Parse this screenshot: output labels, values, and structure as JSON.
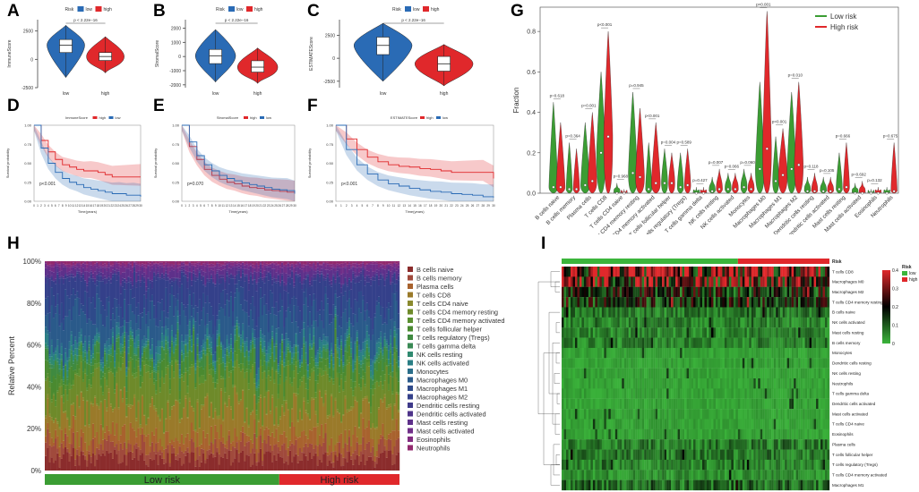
{
  "panel_labels": {
    "A": "A",
    "B": "B",
    "C": "C",
    "D": "D",
    "E": "E",
    "F": "F",
    "G": "G",
    "H": "H",
    "I": "I"
  },
  "colors": {
    "low": "#2a6bb5",
    "high": "#e0282b",
    "green": "#3b9d33",
    "hm_high": "#e0282b",
    "hm_mid": "#000000",
    "hm_low": "#3bb53b"
  },
  "chart_data": [
    {
      "id": "A",
      "type": "violin",
      "legend_title": "Risk",
      "legend_entries": [
        "low",
        "high"
      ],
      "ylabel": "ImmuneScore",
      "yticks": [
        -2500,
        0,
        2500
      ],
      "ylim": [
        -2500,
        3500
      ],
      "categories": [
        "low",
        "high"
      ],
      "medians": [
        1250,
        250
      ],
      "q1": [
        600,
        -100
      ],
      "q3": [
        1750,
        600
      ],
      "whisk": [
        [
          -1600,
          3000
        ],
        [
          -1200,
          2000
        ]
      ],
      "pvalue": "p < 2.22e−16"
    },
    {
      "id": "B",
      "type": "violin",
      "legend_title": "Risk",
      "legend_entries": [
        "low",
        "high"
      ],
      "ylabel": "StromalScore",
      "yticks": [
        -2000,
        -1000,
        0,
        1000,
        2000
      ],
      "ylim": [
        -2200,
        2600
      ],
      "categories": [
        "low",
        "high"
      ],
      "medians": [
        50,
        -750
      ],
      "q1": [
        -500,
        -1100
      ],
      "q3": [
        500,
        -300
      ],
      "whisk": [
        [
          -1800,
          1900
        ],
        [
          -1900,
          600
        ]
      ],
      "pvalue": "p < 2.22e−16"
    },
    {
      "id": "C",
      "type": "violin",
      "legend_title": "Risk",
      "legend_entries": [
        "low",
        "high"
      ],
      "ylabel": "ESTIMATEScore",
      "yticks": [
        -2500,
        0,
        2500
      ],
      "ylim": [
        -3200,
        4200
      ],
      "categories": [
        "low",
        "high"
      ],
      "medians": [
        1400,
        -600
      ],
      "q1": [
        400,
        -1400
      ],
      "q3": [
        2300,
        200
      ],
      "whisk": [
        [
          -2500,
          3800
        ],
        [
          -3000,
          1500
        ]
      ],
      "pvalue": "p < 2.22e−16"
    },
    {
      "id": "D",
      "type": "line",
      "title": "ImmuneScore",
      "legend_entries": [
        "high",
        "low"
      ],
      "ylabel": "Survival probability",
      "xlabel": "Time(years)",
      "yticks": [
        "0.00",
        "0.25",
        "0.50",
        "0.75",
        "1.00"
      ],
      "xticks": [
        "0",
        "1",
        "2",
        "3",
        "4",
        "5",
        "6",
        "7",
        "8",
        "9",
        "10",
        "11",
        "12",
        "13",
        "14",
        "15",
        "16",
        "17",
        "18",
        "19",
        "20",
        "21",
        "22",
        "23",
        "24",
        "25",
        "26",
        "27",
        "28",
        "29",
        "30"
      ],
      "series": [
        {
          "name": "high",
          "x": [
            0,
            2,
            4,
            6,
            8,
            10,
            12,
            14,
            16,
            18,
            20,
            22,
            24,
            26,
            28,
            30
          ],
          "y": [
            1,
            0.8,
            0.65,
            0.55,
            0.48,
            0.45,
            0.42,
            0.4,
            0.4,
            0.38,
            0.35,
            0.32,
            0.32,
            0.32,
            0.32,
            0.32
          ]
        },
        {
          "name": "low",
          "x": [
            0,
            2,
            4,
            6,
            8,
            10,
            12,
            14,
            16,
            18,
            20,
            22,
            24,
            26,
            28,
            30
          ],
          "y": [
            1,
            0.7,
            0.5,
            0.38,
            0.3,
            0.25,
            0.22,
            0.18,
            0.16,
            0.14,
            0.12,
            0.1,
            0.1,
            0.08,
            0.08,
            0.06
          ]
        }
      ],
      "pvalue": "p<0.001"
    },
    {
      "id": "E",
      "type": "line",
      "title": "StromalScore",
      "legend_entries": [
        "high",
        "low"
      ],
      "ylabel": "Survival probability",
      "xlabel": "Time(years)",
      "yticks": [
        "0.00",
        "0.25",
        "0.50",
        "0.75",
        "1.00"
      ],
      "xticks": [
        "0",
        "1",
        "2",
        "3",
        "4",
        "5",
        "6",
        "7",
        "8",
        "9",
        "10",
        "11",
        "12",
        "13",
        "14",
        "15",
        "16",
        "17",
        "18",
        "19",
        "20",
        "21",
        "22",
        "23",
        "24",
        "25",
        "26",
        "27",
        "28",
        "29",
        "30"
      ],
      "series": [
        {
          "name": "high",
          "x": [
            0,
            2,
            4,
            6,
            8,
            10,
            12,
            14,
            16,
            18,
            20,
            22,
            24,
            26,
            28,
            30
          ],
          "y": [
            1,
            0.72,
            0.55,
            0.42,
            0.34,
            0.29,
            0.25,
            0.23,
            0.2,
            0.18,
            0.17,
            0.15,
            0.14,
            0.13,
            0.12,
            0.1
          ]
        },
        {
          "name": "low",
          "x": [
            0,
            2,
            4,
            6,
            8,
            10,
            12,
            14,
            16,
            18,
            20,
            22,
            24,
            26,
            28,
            30
          ],
          "y": [
            1,
            0.78,
            0.6,
            0.48,
            0.4,
            0.34,
            0.3,
            0.27,
            0.24,
            0.22,
            0.2,
            0.18,
            0.16,
            0.15,
            0.14,
            0.1
          ]
        }
      ],
      "pvalue": "p=0.070"
    },
    {
      "id": "F",
      "type": "line",
      "title": "ESTIMATEScore",
      "legend_entries": [
        "high",
        "low"
      ],
      "ylabel": "Survival probability",
      "xlabel": "Time(years)",
      "yticks": [
        "0.00",
        "0.25",
        "0.50",
        "0.75",
        "1.00"
      ],
      "xticks": [
        "0",
        "1",
        "2",
        "3",
        "4",
        "5",
        "6",
        "7",
        "8",
        "9",
        "10",
        "11",
        "12",
        "13",
        "14",
        "15",
        "16",
        "17",
        "18",
        "19",
        "20",
        "21",
        "22",
        "23",
        "24",
        "25",
        "26",
        "27",
        "28",
        "29",
        "30"
      ],
      "series": [
        {
          "name": "high",
          "x": [
            0,
            2,
            4,
            6,
            8,
            10,
            12,
            14,
            16,
            18,
            20,
            22,
            24,
            26,
            28,
            30
          ],
          "y": [
            1,
            0.82,
            0.68,
            0.58,
            0.52,
            0.48,
            0.46,
            0.45,
            0.43,
            0.42,
            0.4,
            0.38,
            0.38,
            0.38,
            0.38,
            0.3
          ]
        },
        {
          "name": "low",
          "x": [
            0,
            2,
            4,
            6,
            8,
            10,
            12,
            14,
            16,
            18,
            20,
            22,
            24,
            26,
            28,
            30
          ],
          "y": [
            1,
            0.68,
            0.48,
            0.36,
            0.28,
            0.23,
            0.2,
            0.17,
            0.15,
            0.13,
            0.12,
            0.1,
            0.09,
            0.08,
            0.06,
            0.05
          ]
        }
      ],
      "pvalue": "p<0.001"
    },
    {
      "id": "G",
      "type": "violin",
      "ylabel": "Fraction",
      "yticks": [
        "0.0",
        "0.2",
        "0.4",
        "0.6",
        "0.8"
      ],
      "ylim": [
        0,
        0.92
      ],
      "legend_entries": [
        "Low risk",
        "High risk"
      ],
      "categories": [
        "B cells naive",
        "B cells memory",
        "Plasma cells",
        "T cells CD8",
        "T cells CD4 naive",
        "T cells CD4 memory resting",
        "T cells CD4 memory activated",
        "T cells follicular helper",
        "T cells regulatory (Tregs)",
        "T cells gamma delta",
        "NK cells resting",
        "NK cells activated",
        "Monocytes",
        "Macrophages M0",
        "Macrophages M1",
        "Macrophages M2",
        "Dendritic cells resting",
        "Dendritic cells activated",
        "Mast cells resting",
        "Mast cells activated",
        "Eosinophils",
        "Neutrophils"
      ],
      "pvalues": [
        "p=0.618",
        "p=0.364",
        "p=0.001",
        "p<0.001",
        "p=0.968",
        "p=0.945",
        "p<0.001",
        "p=0.004",
        "p=0.589",
        "p=0.427",
        "p=0.007",
        "p=0.066",
        "p=0.060",
        "p<0.001",
        "p<0.001",
        "p=0.010",
        "p=0.118",
        "p=0.105",
        "p=0.666",
        "p=0.692",
        "p=0.132",
        "p=0.675"
      ],
      "low_max": [
        0.45,
        0.25,
        0.35,
        0.6,
        0.05,
        0.5,
        0.25,
        0.22,
        0.2,
        0.03,
        0.08,
        0.1,
        0.12,
        0.55,
        0.28,
        0.5,
        0.08,
        0.08,
        0.2,
        0.05,
        0.02,
        0.03
      ],
      "high_max": [
        0.35,
        0.22,
        0.4,
        0.8,
        0.02,
        0.42,
        0.35,
        0.2,
        0.22,
        0.03,
        0.12,
        0.1,
        0.1,
        0.9,
        0.32,
        0.55,
        0.1,
        0.08,
        0.25,
        0.06,
        0.03,
        0.25
      ],
      "low_med": [
        0.03,
        0.02,
        0.04,
        0.2,
        0.0,
        0.1,
        0.02,
        0.05,
        0.03,
        0.0,
        0.01,
        0.02,
        0.03,
        0.12,
        0.06,
        0.12,
        0.01,
        0.01,
        0.02,
        0.0,
        0.0,
        0.0
      ],
      "high_med": [
        0.03,
        0.02,
        0.06,
        0.28,
        0.0,
        0.08,
        0.05,
        0.05,
        0.04,
        0.0,
        0.02,
        0.02,
        0.02,
        0.22,
        0.09,
        0.14,
        0.01,
        0.01,
        0.03,
        0.0,
        0.0,
        0.01
      ]
    },
    {
      "id": "H",
      "type": "stacked_bar",
      "ylabel": "Relative Percent",
      "yticks": [
        "0%",
        "20%",
        "40%",
        "60%",
        "80%",
        "100%"
      ],
      "group_labels": [
        "Low risk",
        "High risk"
      ],
      "legend": [
        "B cells naive",
        "B cells memory",
        "Plasma cells",
        "T cells CD8",
        "T cells CD4 naive",
        "T cells CD4 memory resting",
        "T cells CD4 memory activated",
        "T cells follicular helper",
        "T cells regulatory (Tregs)",
        "T cells gamma delta",
        "NK cells resting",
        "NK cells activated",
        "Monocytes",
        "Macrophages M0",
        "Macrophages M1",
        "Macrophages M2",
        "Dendritic cells resting",
        "Dendritic cells activated",
        "Mast cells resting",
        "Mast cells activated",
        "Eosinophils",
        "Neutrophils"
      ],
      "legend_colors": [
        "#8b2c2c",
        "#a04a3c",
        "#a8622e",
        "#9a7a2a",
        "#8a8a2e",
        "#6e8a2a",
        "#5a9030",
        "#4a8a30",
        "#3f8a40",
        "#3a8a55",
        "#2f8a70",
        "#2a7e85",
        "#2a6e8a",
        "#2a5a8a",
        "#2e4a8a",
        "#34408a",
        "#3e3a8a",
        "#4e348a",
        "#5e308a",
        "#702e88",
        "#822c80",
        "#922a6e"
      ],
      "mean_fractions": [
        0.06,
        0.05,
        0.06,
        0.12,
        0.01,
        0.14,
        0.02,
        0.05,
        0.04,
        0.01,
        0.02,
        0.03,
        0.02,
        0.12,
        0.07,
        0.1,
        0.02,
        0.01,
        0.03,
        0.02,
        0.01,
        0.01
      ]
    },
    {
      "id": "I",
      "type": "heatmap",
      "annotation_label": "Risk",
      "legend_title": "Risk",
      "legend_entries": [
        "low",
        "high"
      ],
      "scale_ticks": [
        "0.4",
        "0.3",
        "0.2",
        "0.1",
        "0"
      ],
      "rows": [
        "T cells CD8",
        "Macrophages M0",
        "Macrophages M2",
        "T cells CD4 memory resting",
        "B cells naive",
        "NK cells activated",
        "Mast cells resting",
        "B cells memory",
        "Monocytes",
        "Dendritic cells resting",
        "NK cells resting",
        "Neutrophils",
        "T cells gamma delta",
        "Dendritic cells activated",
        "Mast cells activated",
        "T cells CD4 naive",
        "Eosinophils",
        "Plasma cells",
        "T cells follicular helper",
        "T cells regulatory (Tregs)",
        "T cells CD4 memory activated",
        "Macrophages M1"
      ],
      "row_levels": [
        0.28,
        0.22,
        0.15,
        0.14,
        0.06,
        0.05,
        0.05,
        0.05,
        0.02,
        0.02,
        0.02,
        0.02,
        0.02,
        0.02,
        0.02,
        0.02,
        0.02,
        0.06,
        0.06,
        0.05,
        0.04,
        0.08
      ]
    }
  ]
}
